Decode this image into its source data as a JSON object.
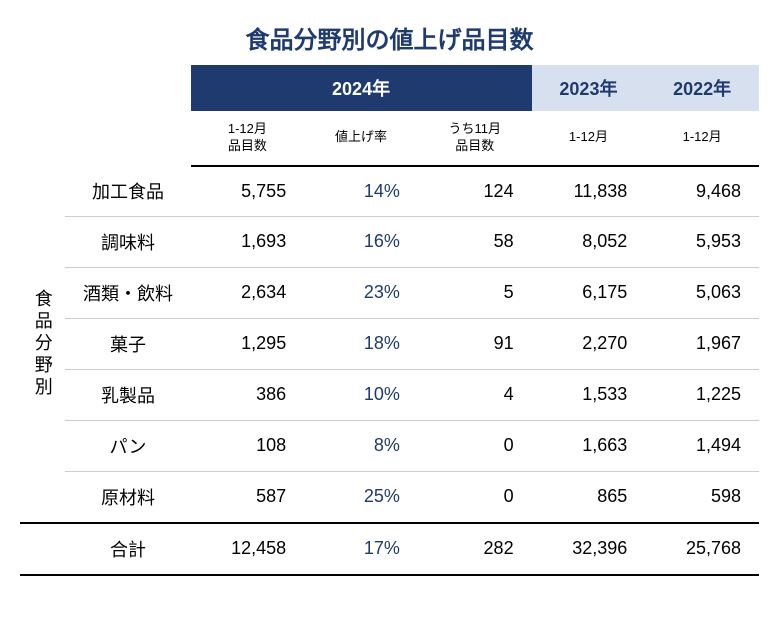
{
  "title": "食品分野別の値上げ品目数",
  "title_color": "#1f3a6e",
  "colors": {
    "year_2024_bg": "#1f3a6e",
    "year_2023_bg": "#d6e0ee",
    "year_2022_bg": "#d6e0ee",
    "year_alt_text": "#1f3a6e",
    "rate_text": "#1f3a6e",
    "border_light": "#cccccc"
  },
  "years": {
    "y2024": "2024年",
    "y2023": "2023年",
    "y2022": "2022年"
  },
  "subheaders": {
    "items_1_12": "1-12月\n品目数",
    "rate": "値上げ率",
    "nov_items": "うち11月\n品目数",
    "y2023_sub": "1-12月",
    "y2022_sub": "1-12月"
  },
  "group_label": "食品分野別",
  "rows": [
    {
      "label": "加工食品",
      "items_2024": "5,755",
      "rate": "14%",
      "nov": "124",
      "y2023": "11,838",
      "y2022": "9,468"
    },
    {
      "label": "調味料",
      "items_2024": "1,693",
      "rate": "16%",
      "nov": "58",
      "y2023": "8,052",
      "y2022": "5,953"
    },
    {
      "label": "酒類・飲料",
      "items_2024": "2,634",
      "rate": "23%",
      "nov": "5",
      "y2023": "6,175",
      "y2022": "5,063"
    },
    {
      "label": "菓子",
      "items_2024": "1,295",
      "rate": "18%",
      "nov": "91",
      "y2023": "2,270",
      "y2022": "1,967"
    },
    {
      "label": "乳製品",
      "items_2024": "386",
      "rate": "10%",
      "nov": "4",
      "y2023": "1,533",
      "y2022": "1,225"
    },
    {
      "label": "パン",
      "items_2024": "108",
      "rate": "8%",
      "nov": "0",
      "y2023": "1,663",
      "y2022": "1,494"
    },
    {
      "label": "原材料",
      "items_2024": "587",
      "rate": "25%",
      "nov": "0",
      "y2023": "865",
      "y2022": "598"
    }
  ],
  "total": {
    "label": "合計",
    "items_2024": "12,458",
    "rate": "17%",
    "nov": "282",
    "y2023": "32,396",
    "y2022": "25,768"
  }
}
